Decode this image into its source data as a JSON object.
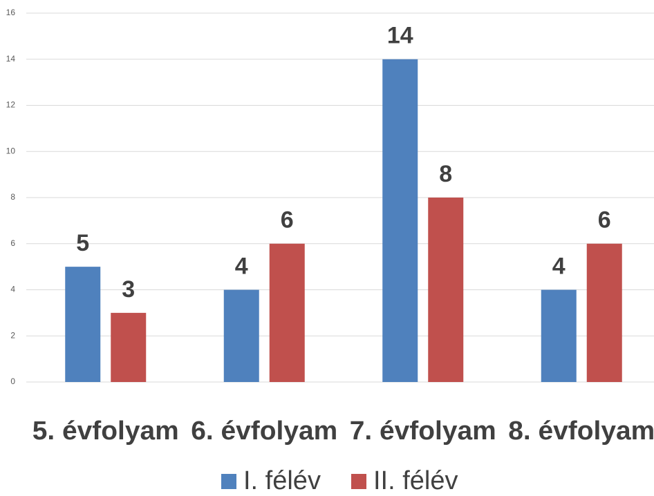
{
  "chart_data": {
    "type": "bar",
    "categories": [
      "5. évfolyam",
      "6. évfolyam",
      "7. évfolyam",
      "8. évfolyam"
    ],
    "series": [
      {
        "name": "I. félév",
        "color": "#4f81bd",
        "values": [
          5,
          4,
          14,
          4
        ]
      },
      {
        "name": "II. félév",
        "color": "#c0504d",
        "values": [
          3,
          6,
          8,
          6
        ]
      }
    ],
    "ylim": [
      0,
      16
    ],
    "yticks": [
      0,
      2,
      4,
      6,
      8,
      10,
      12,
      14,
      16
    ],
    "grid": true,
    "legend": "bottom"
  }
}
